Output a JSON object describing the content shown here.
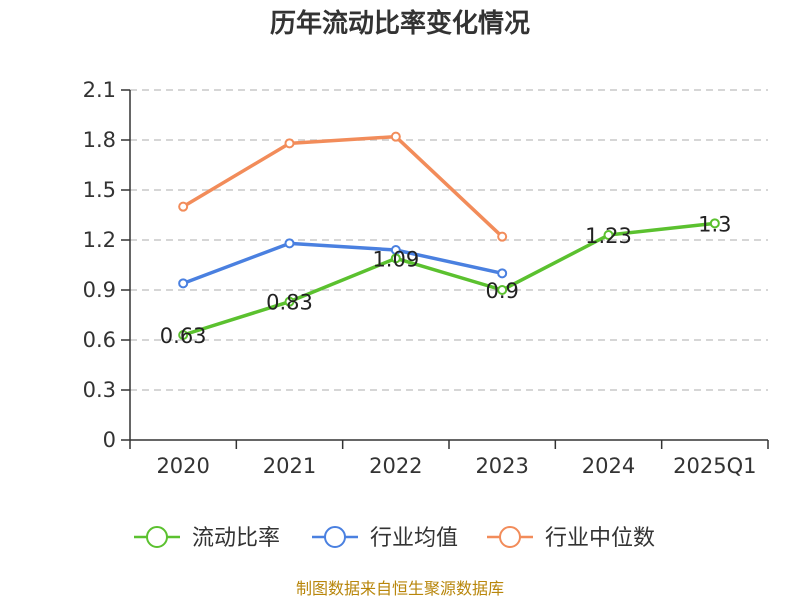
{
  "chart_data": {
    "type": "line",
    "title": "历年流动比率变化情况",
    "categories": [
      "2020",
      "2021",
      "2022",
      "2023",
      "2024",
      "2025Q1"
    ],
    "ylim": [
      0,
      2.1
    ],
    "yticks": [
      "0",
      "0.3",
      "0.6",
      "0.9",
      "1.2",
      "1.5",
      "1.8",
      "2.1"
    ],
    "grid": true,
    "legend_position": "bottom",
    "series": [
      {
        "name": "流动比率",
        "color": "#5bc12f",
        "values": [
          0.63,
          0.83,
          1.09,
          0.9,
          1.23,
          1.3
        ],
        "labels": [
          "0.63",
          "0.83",
          "1.09",
          "0.9",
          "1.23",
          "1.3"
        ]
      },
      {
        "name": "行业均值",
        "color": "#4a80e0",
        "values": [
          0.94,
          1.18,
          1.14,
          1.0,
          null,
          null
        ]
      },
      {
        "name": "行业中位数",
        "color": "#f28c5a",
        "values": [
          1.4,
          1.78,
          1.82,
          1.22,
          null,
          null
        ]
      }
    ]
  },
  "footer": {
    "source": "制图数据来自恒生聚源数据库"
  }
}
